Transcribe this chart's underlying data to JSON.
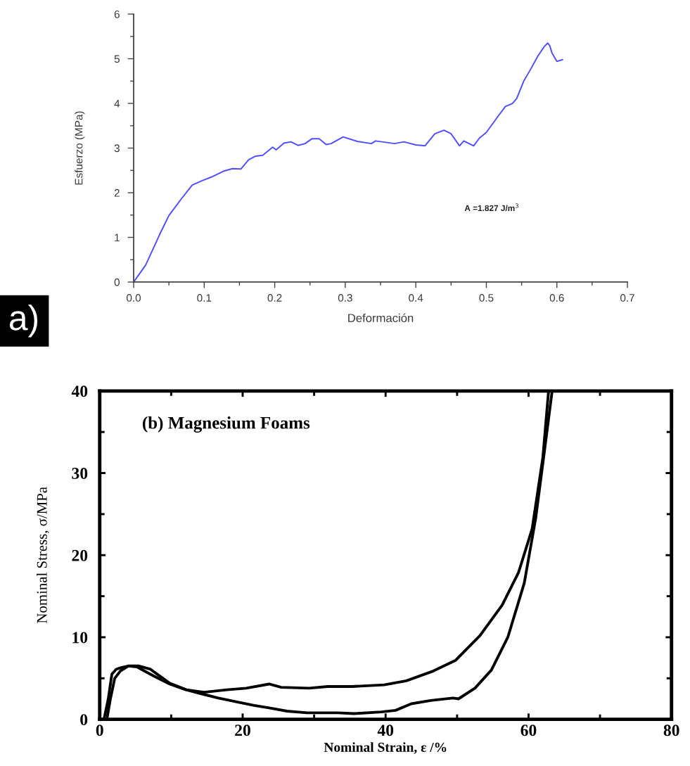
{
  "chart_data": [
    {
      "type": "line",
      "xlabel": "Deformación",
      "ylabel": "Esfuerzo (MPa)",
      "xlim": [
        0,
        0.7
      ],
      "ylim": [
        0,
        6
      ],
      "xticks": [
        {
          "value": 0,
          "label": "0.0"
        },
        {
          "value": 0.05,
          "label": null
        },
        {
          "value": 0.1,
          "label": "0.1"
        },
        {
          "value": 0.15,
          "label": null
        },
        {
          "value": 0.2,
          "label": "0.2"
        },
        {
          "value": 0.25,
          "label": null
        },
        {
          "value": 0.3,
          "label": "0.3"
        },
        {
          "value": 0.35,
          "label": null
        },
        {
          "value": 0.4,
          "label": "0.4"
        },
        {
          "value": 0.45,
          "label": null
        },
        {
          "value": 0.5,
          "label": "0.5"
        },
        {
          "value": 0.55,
          "label": null
        },
        {
          "value": 0.6,
          "label": "0.6"
        },
        {
          "value": 0.65,
          "label": null
        },
        {
          "value": 0.7,
          "label": "0.7"
        }
      ],
      "yticks": [
        0,
        {
          "value": 0.5,
          "label": null
        },
        1,
        {
          "value": 1.5,
          "label": null
        },
        2,
        {
          "value": 2.5,
          "label": null
        },
        3,
        {
          "value": 3.5,
          "label": null
        },
        4,
        {
          "value": 4.5,
          "label": null
        },
        5,
        {
          "value": 5.5,
          "label": null
        },
        6
      ],
      "x": [
        0,
        0.017,
        0.037,
        0.05,
        0.067,
        0.083,
        0.097,
        0.11,
        0.127,
        0.14,
        0.152,
        0.163,
        0.173,
        0.183,
        0.197,
        0.202,
        0.213,
        0.223,
        0.233,
        0.243,
        0.253,
        0.263,
        0.273,
        0.28,
        0.297,
        0.317,
        0.337,
        0.343,
        0.37,
        0.383,
        0.4,
        0.413,
        0.427,
        0.44,
        0.45,
        0.462,
        0.468,
        0.482,
        0.49,
        0.5,
        0.517,
        0.527,
        0.537,
        0.543,
        0.553,
        0.563,
        0.573,
        0.582,
        0.587,
        0.59,
        0.593,
        0.6,
        0.608
      ],
      "series": [
        {
          "color": "#4f4fff",
          "values": [
            0,
            0.38,
            1.07,
            1.49,
            1.85,
            2.17,
            2.27,
            2.35,
            2.48,
            2.54,
            2.53,
            2.74,
            2.82,
            2.84,
            3.02,
            2.96,
            3.11,
            3.14,
            3.06,
            3.1,
            3.21,
            3.21,
            3.08,
            3.1,
            3.25,
            3.15,
            3.1,
            3.16,
            3.1,
            3.14,
            3.07,
            3.05,
            3.32,
            3.4,
            3.32,
            3.05,
            3.16,
            3.05,
            3.22,
            3.35,
            3.72,
            3.93,
            4.0,
            4.11,
            4.5,
            4.77,
            5.06,
            5.27,
            5.35,
            5.29,
            5.13,
            4.94,
            4.98
          ]
        }
      ],
      "annotations": [
        "A =1.827 J/m$^{3}$",
        "a)"
      ]
    },
    {
      "type": "line",
      "title": "(b) Magnesium Foams",
      "xlabel": "Nominal Strain, ε /%",
      "ylabel": "Nominal Stress, σ/MPa",
      "xlim": [
        0,
        80
      ],
      "ylim": [
        0,
        40
      ],
      "xticks": [
        0,
        {
          "value": 10,
          "label": null
        },
        20,
        {
          "value": 30,
          "label": null
        },
        40,
        {
          "value": 50,
          "label": null
        },
        60,
        {
          "value": 70,
          "label": null
        },
        80
      ],
      "yticks": [
        0,
        {
          "value": 5,
          "label": null
        },
        10,
        {
          "value": 15,
          "label": null
        },
        20,
        {
          "value": 25,
          "label": null
        },
        30,
        {
          "value": 35,
          "label": null
        },
        40
      ],
      "series": [
        {
          "color": "#000000",
          "x": [
            0.6,
            1.2,
            1.7,
            2.3,
            3.0,
            4.0,
            5.5,
            7.1,
            8.2,
            9.8,
            12.1,
            14.6,
            17.8,
            20.5,
            23.7,
            25.4,
            29.3,
            31.9,
            35.3,
            39.8,
            42.9,
            46.7,
            49.8,
            53.2,
            56.3,
            58.6,
            60.5,
            62.0,
            62.8
          ],
          "values": [
            0,
            2.5,
            5.5,
            6.1,
            6.3,
            6.5,
            6.5,
            6.1,
            5.4,
            4.4,
            3.6,
            3.3,
            3.6,
            3.8,
            4.3,
            3.9,
            3.8,
            4.0,
            4.0,
            4.2,
            4.7,
            5.9,
            7.2,
            10.2,
            13.9,
            17.9,
            23.2,
            31.9,
            40
          ]
        },
        {
          "color": "#000000",
          "x": [
            1.0,
            1.5,
            2.1,
            2.9,
            4.0,
            5.2,
            7.5,
            9.8,
            12.1,
            14.3,
            16.6,
            19.3,
            21.6,
            23.7,
            26.2,
            29.0,
            33.3,
            35.6,
            39.4,
            41.4,
            43.6,
            46.3,
            49.4,
            50.2,
            52.5,
            54.8,
            57.1,
            59.4,
            61.0,
            62.2,
            63.3
          ],
          "values": [
            0,
            2.5,
            5.0,
            5.9,
            6.5,
            6.4,
            5.3,
            4.3,
            3.6,
            3.1,
            2.6,
            2.1,
            1.7,
            1.4,
            1.0,
            0.8,
            0.8,
            0.7,
            0.9,
            1.1,
            1.9,
            2.3,
            2.6,
            2.5,
            3.8,
            6.0,
            10.0,
            16.6,
            24.5,
            32.5,
            40
          ]
        }
      ]
    }
  ]
}
